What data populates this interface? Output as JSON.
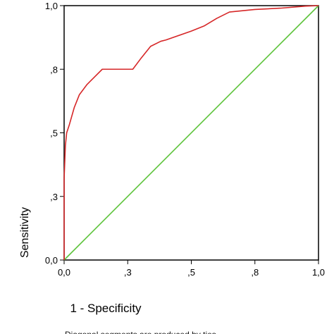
{
  "chart_data": {
    "type": "line",
    "xlabel": "1 - Specificity",
    "ylabel": "Sensitivity",
    "xlim": [
      0,
      1
    ],
    "ylim": [
      0,
      1
    ],
    "x_ticks": [
      0,
      0.25,
      0.5,
      0.75,
      1
    ],
    "y_ticks": [
      0,
      0.25,
      0.5,
      0.75,
      1
    ],
    "x_tick_labels": [
      "0,0",
      ",3",
      ",5",
      ",8",
      "1,0"
    ],
    "y_tick_labels": [
      "0,0",
      ",3",
      ",5",
      ",8",
      "1,0"
    ],
    "grid": false,
    "series": [
      {
        "color": "#d62728",
        "x": [
          0,
          0,
          0.005,
          0.01,
          0.02,
          0.04,
          0.06,
          0.09,
          0.12,
          0.15,
          0.27,
          0.3,
          0.34,
          0.38,
          0.4,
          0.5,
          0.55,
          0.6,
          0.65,
          0.75,
          0.85,
          0.95,
          1.0
        ],
        "y": [
          0,
          0.32,
          0.45,
          0.5,
          0.53,
          0.6,
          0.65,
          0.69,
          0.72,
          0.75,
          0.75,
          0.79,
          0.84,
          0.86,
          0.865,
          0.9,
          0.92,
          0.95,
          0.975,
          0.985,
          0.99,
          0.998,
          1.0
        ]
      },
      {
        "color": "#5cc33a",
        "x": [
          0,
          1
        ],
        "y": [
          0,
          1
        ]
      }
    ]
  },
  "footnote": "Diagonal segments are produced by ties."
}
